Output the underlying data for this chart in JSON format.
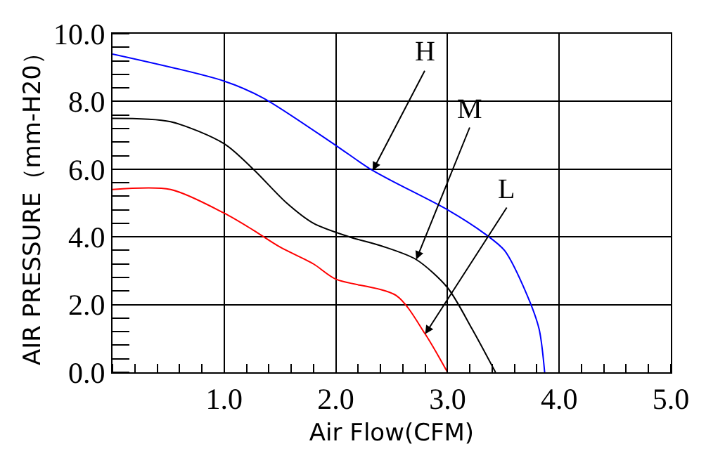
{
  "chart_data": {
    "type": "line",
    "xlabel": "Air Flow(CFM)",
    "ylabel": "AIR PRESSURE（mm-H20）",
    "xlim": [
      0,
      5
    ],
    "ylim": [
      0,
      10
    ],
    "xticks": [
      {
        "value": 0,
        "label": null
      },
      {
        "value": 1,
        "label": "1.0"
      },
      {
        "value": 2,
        "label": "2.0"
      },
      {
        "value": 3,
        "label": "3.0"
      },
      {
        "value": 4,
        "label": "4.0"
      },
      {
        "value": 5,
        "label": "5.0"
      }
    ],
    "yticks": [
      {
        "value": 0,
        "label": "0.0"
      },
      {
        "value": 2,
        "label": "2.0"
      },
      {
        "value": 4,
        "label": "4.0"
      },
      {
        "value": 6,
        "label": "6.0"
      },
      {
        "value": 8,
        "label": "8.0"
      },
      {
        "value": 10,
        "label": "10.0"
      }
    ],
    "grid": true,
    "marker": "none",
    "line_style": "solid",
    "series": [
      {
        "color": "#0000ff",
        "x": [
          0,
          1.0,
          1.35,
          2.0,
          2.33,
          3.0,
          3.33,
          3.51,
          3.71,
          3.82,
          3.87
        ],
        "values": [
          9.4,
          8.6,
          8.1,
          6.7,
          5.96,
          4.8,
          4.1,
          3.6,
          2.3,
          1.28,
          0
        ]
      },
      {
        "color": "#000000",
        "x": [
          0,
          0.52,
          1.0,
          1.26,
          1.56,
          1.8,
          2.12,
          2.41,
          2.72,
          3.0,
          3.22,
          3.43
        ],
        "values": [
          7.5,
          7.4,
          6.75,
          6.0,
          5.0,
          4.4,
          4.0,
          3.73,
          3.33,
          2.5,
          1.28,
          0
        ]
      },
      {
        "color": "#ff0000",
        "x": [
          0,
          0.52,
          1.0,
          1.26,
          1.5,
          1.8,
          2.0,
          2.54,
          2.8,
          3.0
        ],
        "values": [
          5.4,
          5.4,
          4.7,
          4.2,
          3.7,
          3.2,
          2.75,
          2.27,
          1.13,
          0
        ]
      }
    ],
    "annotations": [
      {
        "text": "H",
        "x": 2.33,
        "y": 5.96
      },
      {
        "text": "M",
        "x": 2.72,
        "y": 3.33
      },
      {
        "text": "L",
        "x": 2.8,
        "y": 1.13
      }
    ]
  }
}
